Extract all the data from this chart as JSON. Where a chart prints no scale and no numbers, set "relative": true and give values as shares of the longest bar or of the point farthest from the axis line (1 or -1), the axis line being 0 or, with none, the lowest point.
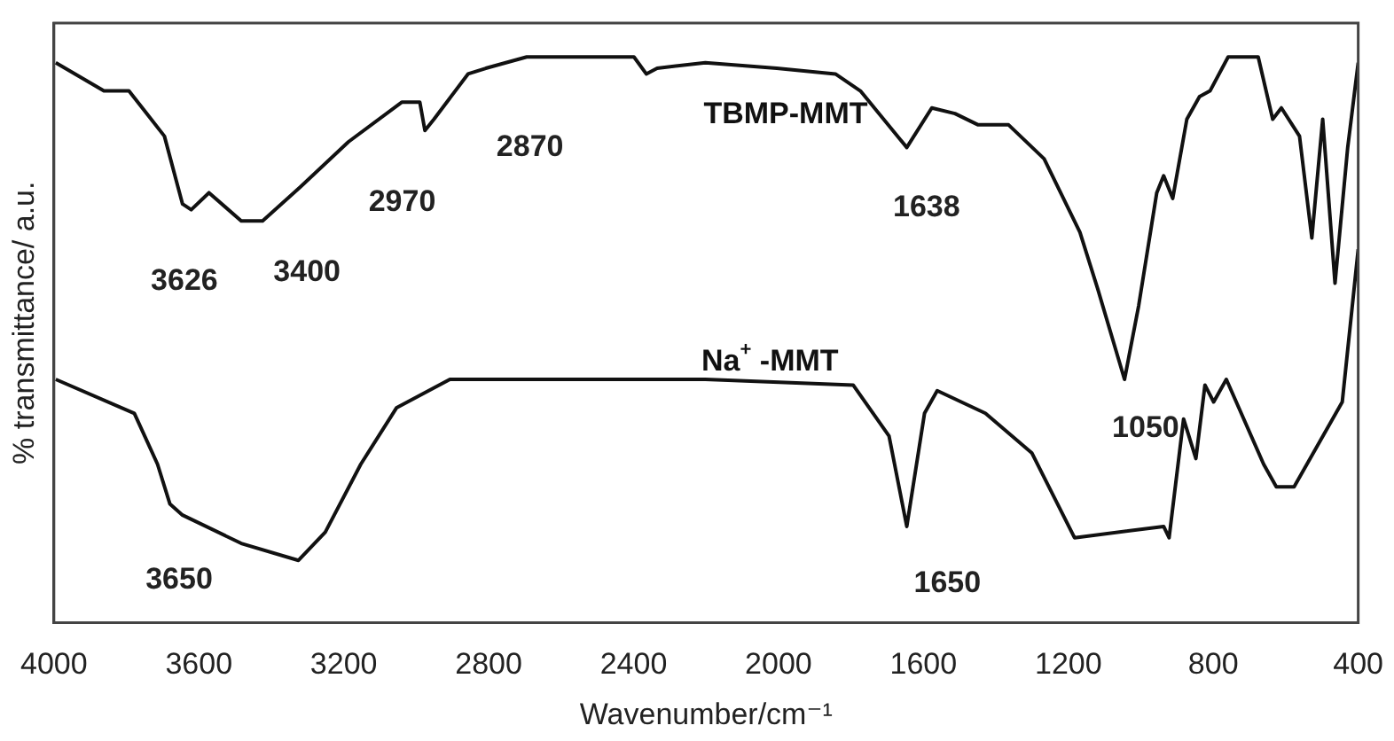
{
  "chart_data": {
    "type": "line",
    "relative": true,
    "xlabel": "Wavenumber/cm⁻¹",
    "ylabel": "% transmittance/ a.u.",
    "xlim": [
      4000,
      400
    ],
    "xticks": [
      4000,
      3600,
      3200,
      2800,
      2400,
      2000,
      1600,
      1200,
      800,
      400
    ],
    "grid": false,
    "legend": false,
    "marker": "none",
    "line_style": "solid",
    "tick_labels": "x",
    "series": [
      {
        "name": "TBMP-MMT",
        "color": "#111111",
        "x": [
          3995,
          3862,
          3793,
          3744,
          3695,
          3645,
          3621,
          3572,
          3483,
          3424,
          3320,
          3187,
          3040,
          2990,
          2976,
          2951,
          2857,
          2808,
          2695,
          2399,
          2365,
          2335,
          2202,
          2005,
          1843,
          1774,
          1646,
          1577,
          1513,
          1449,
          1365,
          1267,
          1168,
          1119,
          1045,
          1006,
          956,
          937,
          912,
          873,
          838,
          809,
          759,
          676,
          636,
          612,
          562,
          528,
          498,
          464,
          429,
          400
        ],
        "values": [
          0.99,
          0.94,
          0.94,
          0.9,
          0.86,
          0.74,
          0.73,
          0.76,
          0.71,
          0.71,
          0.77,
          0.85,
          0.92,
          0.92,
          0.87,
          0.89,
          0.97,
          0.98,
          1,
          1,
          0.97,
          0.98,
          0.99,
          0.98,
          0.97,
          0.94,
          0.84,
          0.91,
          0.9,
          0.88,
          0.88,
          0.82,
          0.69,
          0.59,
          0.43,
          0.56,
          0.76,
          0.79,
          0.75,
          0.89,
          0.93,
          0.94,
          1,
          1,
          0.89,
          0.91,
          0.86,
          0.68,
          0.89,
          0.6,
          0.84,
          0.99
        ]
      },
      {
        "name": "Na$^{+}$ -MMT",
        "color": "#111111",
        "x": [
          3995,
          3778,
          3714,
          3680,
          3645,
          3483,
          3325,
          3251,
          3153,
          3054,
          2907,
          2202,
          1794,
          1695,
          1646,
          1597,
          1562,
          1429,
          1301,
          1183,
          937,
          922,
          882,
          848,
          823,
          799,
          764,
          661,
          626,
          577,
          444,
          400
        ],
        "values": [
          0.43,
          0.37,
          0.28,
          0.21,
          0.19,
          0.14,
          0.11,
          0.16,
          0.28,
          0.38,
          0.43,
          0.43,
          0.42,
          0.33,
          0.17,
          0.37,
          0.41,
          0.37,
          0.3,
          0.15,
          0.17,
          0.15,
          0.36,
          0.29,
          0.42,
          0.39,
          0.43,
          0.28,
          0.24,
          0.24,
          0.39,
          0.66
        ]
      }
    ],
    "annotations": [
      "3626",
      "3400",
      "2970",
      "2870",
      "1638",
      "1050",
      "3650",
      "1650"
    ]
  }
}
